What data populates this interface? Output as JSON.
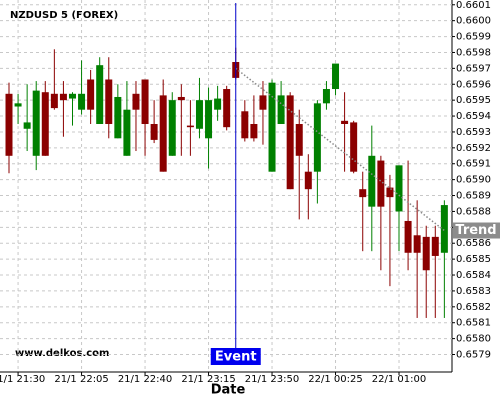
{
  "chart_data": {
    "type": "candlestick",
    "title": "NZDUSD 5 (FOREX)",
    "x_label": "Date",
    "watermark": "www.delkos.com",
    "categories": [
      null,
      "21/1 21:30",
      null,
      null,
      null,
      null,
      null,
      null,
      "21/1 22:05",
      null,
      null,
      null,
      null,
      null,
      null,
      "21/1 22:40",
      null,
      null,
      null,
      null,
      null,
      null,
      "21/1 23:15",
      null,
      null,
      null,
      null,
      null,
      null,
      "21/1 23:50",
      null,
      null,
      null,
      null,
      null,
      null,
      "22/1 00:25",
      null,
      null,
      null,
      null,
      null,
      null,
      "22/1 01:00",
      null,
      null,
      null,
      null,
      null
    ],
    "open": [
      0.65954,
      0.65946,
      0.65932,
      0.65915,
      0.65955,
      0.65954,
      0.65954,
      0.65951,
      0.65944,
      0.65963,
      0.65935,
      0.65963,
      0.65926,
      0.65915,
      0.65954,
      0.65963,
      0.65935,
      0.65953,
      0.65915,
      0.65952,
      0.65934,
      0.65932,
      0.65926,
      0.65944,
      0.65957,
      0.65974,
      0.65943,
      0.65935,
      0.65953,
      0.65905,
      0.65935,
      0.65953,
      0.65935,
      0.65905,
      0.65905,
      0.65948,
      0.65957,
      0.65937,
      0.65936,
      0.65894,
      0.65883,
      0.65912,
      0.65895,
      0.6588,
      0.65874,
      0.65865,
      0.65864,
      0.65864,
      0.65854
    ],
    "high": [
      0.65961,
      0.65954,
      0.6596,
      0.65962,
      0.65962,
      0.65982,
      0.65962,
      0.65955,
      0.65975,
      0.65969,
      0.65977,
      0.65977,
      0.6596,
      0.65962,
      0.65962,
      0.65963,
      0.6595,
      0.65963,
      0.65955,
      0.6596,
      0.6595,
      0.65964,
      0.65958,
      0.65959,
      0.65959,
      0.65983,
      0.6595,
      0.65953,
      0.65962,
      0.65963,
      0.65962,
      0.65955,
      0.65944,
      0.65916,
      0.6595,
      0.65962,
      0.65973,
      0.65955,
      0.65937,
      0.65905,
      0.65934,
      0.65915,
      0.65903,
      0.65909,
      0.65912,
      0.65887,
      0.65871,
      0.65871,
      0.65887
    ],
    "low": [
      0.65904,
      0.65935,
      0.65918,
      0.65906,
      0.65915,
      0.65944,
      0.65927,
      0.65934,
      0.65941,
      0.65935,
      0.65935,
      0.65926,
      0.65926,
      0.65915,
      0.65918,
      0.65915,
      0.65923,
      0.65905,
      0.65915,
      0.65915,
      0.65915,
      0.65926,
      0.65907,
      0.65937,
      0.65931,
      0.65963,
      0.65924,
      0.65924,
      0.65922,
      0.65905,
      0.65935,
      0.65894,
      0.65875,
      0.65875,
      0.65885,
      0.65944,
      0.65953,
      0.65905,
      0.65904,
      0.65855,
      0.65855,
      0.65843,
      0.65833,
      0.65855,
      0.65843,
      0.65813,
      0.65813,
      0.65813,
      0.65813
    ],
    "close": [
      0.65915,
      0.65948,
      0.65936,
      0.65956,
      0.65915,
      0.65945,
      0.6595,
      0.65954,
      0.65954,
      0.65944,
      0.65972,
      0.65935,
      0.65952,
      0.65944,
      0.65944,
      0.65935,
      0.65925,
      0.65905,
      0.6595,
      0.6595,
      0.65933,
      0.6595,
      0.6595,
      0.65951,
      0.65933,
      0.65964,
      0.65926,
      0.65926,
      0.65944,
      0.65961,
      0.65953,
      0.65894,
      0.65915,
      0.65894,
      0.65948,
      0.65957,
      0.65973,
      0.65935,
      0.65905,
      0.65889,
      0.65915,
      0.65883,
      0.65889,
      0.65909,
      0.65854,
      0.65854,
      0.65843,
      0.65852,
      0.65884
    ],
    "up_color": "#008000",
    "down_color": "#8b0000",
    "ylim": [
      0.65779,
      0.66013
    ],
    "yticks": [
      {
        "value": 0.6579,
        "label": "0.6579"
      },
      {
        "value": 0.658,
        "label": "0.6580"
      },
      0.6581,
      0.6582,
      0.6583,
      0.6584,
      0.6585,
      0.6586,
      0.6587,
      0.6588,
      0.6589,
      {
        "value": 0.659,
        "label": "0.6590"
      },
      0.6591,
      0.6592,
      0.6593,
      0.6594,
      0.6595,
      0.6596,
      0.6597,
      0.6598,
      0.6599,
      {
        "value": 0.66,
        "label": "0.6600"
      },
      0.6601
    ],
    "grid": true,
    "event": {
      "label": "Event",
      "index": 25
    },
    "trend": {
      "label": "Trend",
      "from": [
        25,
        0.6597
      ],
      "to": [
        48,
        0.65868
      ]
    }
  }
}
